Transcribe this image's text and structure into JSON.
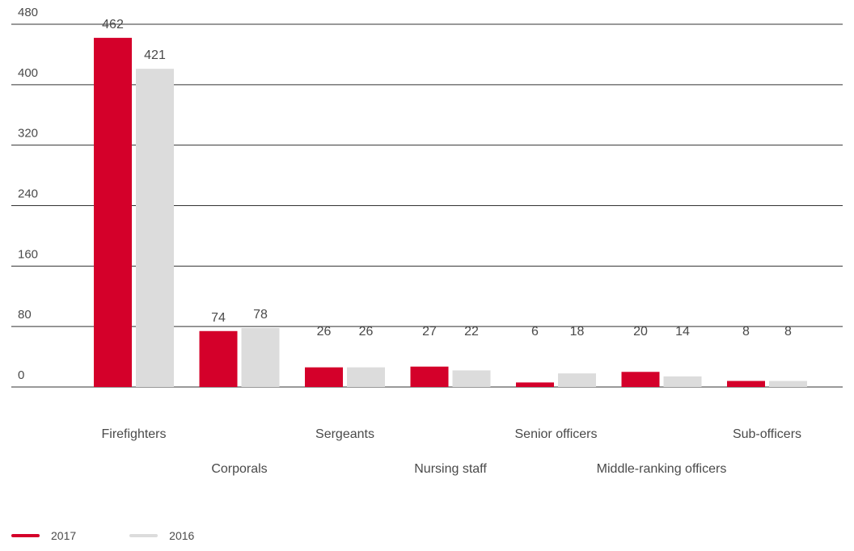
{
  "chart_data": {
    "type": "bar",
    "categories": [
      "Firefighters",
      "Corporals",
      "Sergeants",
      "Nursing staff",
      "Senior officers",
      "Middle-ranking officers",
      "Sub-officers"
    ],
    "series": [
      {
        "name": "2017",
        "color": "#d4002a",
        "values": [
          462,
          74,
          26,
          27,
          6,
          20,
          8
        ]
      },
      {
        "name": "2016",
        "color": "#dcdcdc",
        "values": [
          421,
          78,
          26,
          22,
          18,
          14,
          8
        ]
      }
    ],
    "yticks": [
      0,
      80,
      160,
      240,
      320,
      400,
      480
    ],
    "ylim": [
      0,
      480
    ],
    "grid": true,
    "legend_position": "bottom-left",
    "title": "",
    "xlabel": "",
    "ylabel": ""
  }
}
